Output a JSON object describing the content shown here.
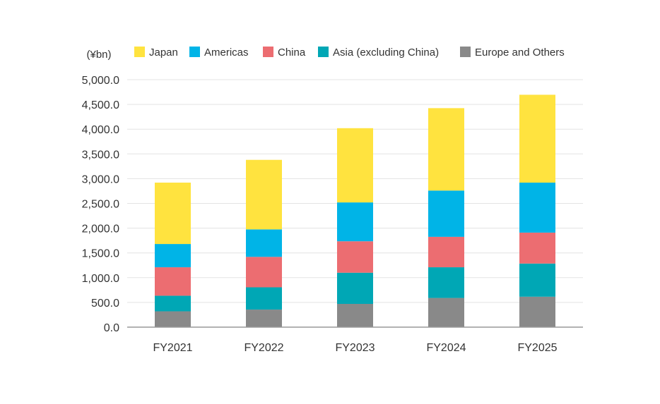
{
  "chart_data": {
    "type": "bar",
    "stacked": true,
    "unit_label": "(¥bn)",
    "categories": [
      "FY2021",
      "FY2022",
      "FY2023",
      "FY2024",
      "FY2025"
    ],
    "series": [
      {
        "name": "Europe and Others",
        "color": "#898989",
        "values": [
          320,
          355,
          470,
          590,
          615
        ]
      },
      {
        "name": "Asia (excluding China)",
        "color": "#00a7b5",
        "values": [
          315,
          450,
          630,
          620,
          670
        ]
      },
      {
        "name": "China",
        "color": "#ec6d71",
        "values": [
          575,
          615,
          635,
          615,
          625
        ]
      },
      {
        "name": "Americas",
        "color": "#00b4e7",
        "values": [
          470,
          555,
          785,
          935,
          1010
        ]
      },
      {
        "name": "Japan",
        "color": "#ffe33f",
        "values": [
          1240,
          1405,
          1500,
          1665,
          1775
        ]
      }
    ],
    "legend_order": [
      "Japan",
      "Americas",
      "China",
      "Asia (excluding China)",
      "Europe and Others"
    ],
    "yticks": [
      "0.0",
      "500.0",
      "1,000.0",
      "1,500.0",
      "2,000.0",
      "2,500.0",
      "3,000.0",
      "3,500.0",
      "4,000.0",
      "4,500.0",
      "5,000.0"
    ],
    "ylim": [
      0,
      5000
    ],
    "grid": true,
    "legend_position": "top"
  }
}
